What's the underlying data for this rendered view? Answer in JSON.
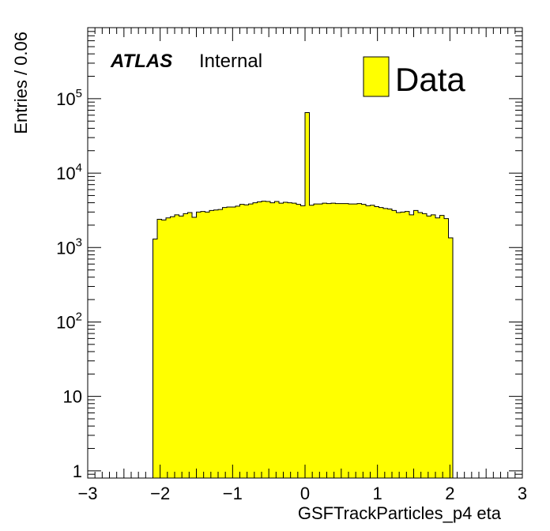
{
  "chart_data": {
    "type": "bar",
    "xlabel": "GSFTrackParticles_p4 eta",
    "ylabel": "Entries / 0.06",
    "xlim": [
      -3,
      3
    ],
    "ylim": [
      0.8,
      900000
    ],
    "yscale": "log",
    "bin_width": 0.06,
    "x_ticks": [
      -3,
      -2,
      -1,
      0,
      1,
      2,
      3
    ],
    "x_tick_labels": [
      "−3",
      "−2",
      "−1",
      "0",
      "1",
      "2",
      "3"
    ],
    "y_tick_labels": [
      {
        "value": 1,
        "base": "1",
        "exp": ""
      },
      {
        "value": 10,
        "base": "10",
        "exp": ""
      },
      {
        "value": 100,
        "base": "10",
        "exp": "2"
      },
      {
        "value": 1000,
        "base": "10",
        "exp": "3"
      },
      {
        "value": 10000,
        "base": "10",
        "exp": "4"
      },
      {
        "value": 100000,
        "base": "10",
        "exp": "5"
      }
    ],
    "series": [
      {
        "name": "Data",
        "color": "#ffff00",
        "x_start": -2.1,
        "values": [
          1300,
          2400,
          2350,
          2500,
          2600,
          2750,
          2650,
          2850,
          2950,
          2550,
          3000,
          3050,
          3000,
          3150,
          3200,
          3250,
          3450,
          3500,
          3500,
          3600,
          3800,
          3750,
          3850,
          4000,
          4100,
          4200,
          4150,
          4000,
          4150,
          3950,
          4050,
          4000,
          3950,
          3800,
          3650,
          65000,
          3700,
          3850,
          3850,
          3950,
          3900,
          3950,
          3900,
          3900,
          3900,
          3850,
          3850,
          3900,
          3800,
          3650,
          3700,
          3550,
          3450,
          3350,
          3300,
          3150,
          2950,
          3000,
          3050,
          2750,
          3150,
          2950,
          2850,
          2650,
          2750,
          2500,
          2700,
          2450,
          1350
        ]
      }
    ],
    "legend": {
      "entries": [
        "Data"
      ],
      "position": "top-right"
    },
    "annotations": {
      "atlas": "ATLAS",
      "label": "Internal"
    },
    "grid": false
  }
}
